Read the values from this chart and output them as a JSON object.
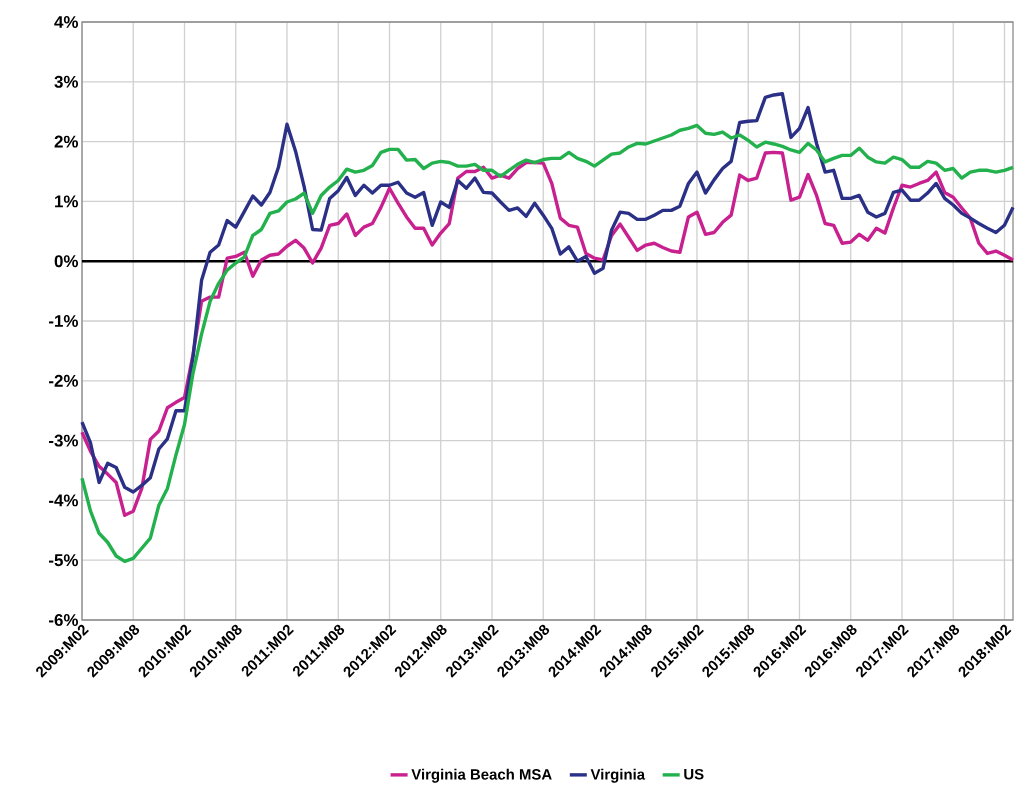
{
  "chart_data": {
    "type": "line",
    "categories": [
      "2009:M02",
      null,
      null,
      null,
      null,
      null,
      "2009:M08",
      null,
      null,
      null,
      null,
      null,
      "2010:M02",
      null,
      null,
      null,
      null,
      null,
      "2010:M08",
      null,
      null,
      null,
      null,
      null,
      "2011:M02",
      null,
      null,
      null,
      null,
      null,
      "2011:M08",
      null,
      null,
      null,
      null,
      null,
      "2012:M02",
      null,
      null,
      null,
      null,
      null,
      "2012:M08",
      null,
      null,
      null,
      null,
      null,
      "2013:M02",
      null,
      null,
      null,
      null,
      null,
      "2013:M08",
      null,
      null,
      null,
      null,
      null,
      "2014:M02",
      null,
      null,
      null,
      null,
      null,
      "2014:M08",
      null,
      null,
      null,
      null,
      null,
      "2015:M02",
      null,
      null,
      null,
      null,
      null,
      "2015:M08",
      null,
      null,
      null,
      null,
      null,
      "2016:M02",
      null,
      null,
      null,
      null,
      null,
      "2016:M08",
      null,
      null,
      null,
      null,
      null,
      "2017:M02",
      null,
      null,
      null,
      null,
      null,
      "2017:M08",
      null,
      null,
      null,
      null,
      null,
      "2018:M02",
      null
    ],
    "series": [
      {
        "name": "Virginia Beach MSA",
        "color": "#c8208f",
        "values": [
          -2.86,
          -3.18,
          -3.43,
          -3.56,
          -3.7,
          -4.25,
          -4.18,
          -3.8,
          -2.98,
          -2.84,
          -2.45,
          -2.36,
          -2.28,
          -1.56,
          -0.67,
          -0.6,
          -0.6,
          0.05,
          0.08,
          0.15,
          -0.25,
          0.02,
          0.1,
          0.12,
          0.25,
          0.35,
          0.22,
          -0.03,
          0.22,
          0.6,
          0.63,
          0.79,
          0.43,
          0.57,
          0.63,
          0.9,
          1.22,
          0.97,
          0.74,
          0.55,
          0.55,
          0.27,
          0.47,
          0.63,
          1.39,
          1.5,
          1.5,
          1.57,
          1.39,
          1.44,
          1.39,
          1.55,
          1.65,
          1.65,
          1.64,
          1.3,
          0.72,
          0.6,
          0.57,
          0.13,
          0.05,
          0.02,
          0.43,
          0.62,
          0.4,
          0.18,
          0.27,
          0.3,
          0.23,
          0.17,
          0.15,
          0.74,
          0.82,
          0.45,
          0.48,
          0.65,
          0.77,
          1.44,
          1.35,
          1.39,
          1.81,
          1.82,
          1.81,
          1.02,
          1.07,
          1.45,
          1.1,
          0.63,
          0.6,
          0.3,
          0.32,
          0.45,
          0.35,
          0.55,
          0.47,
          0.89,
          1.27,
          1.24,
          1.3,
          1.35,
          1.49,
          1.15,
          1.07,
          0.89,
          0.72,
          0.3,
          0.13,
          0.17,
          0.1,
          0.02
        ]
      },
      {
        "name": "Virginia",
        "color": "#2b3087",
        "values": [
          -2.69,
          -3.04,
          -3.7,
          -3.38,
          -3.45,
          -3.78,
          -3.86,
          -3.75,
          -3.62,
          -3.14,
          -2.97,
          -2.5,
          -2.5,
          -1.6,
          -0.32,
          0.15,
          0.27,
          0.68,
          0.57,
          0.83,
          1.09,
          0.94,
          1.15,
          1.57,
          2.29,
          1.84,
          1.25,
          0.53,
          0.52,
          1.05,
          1.18,
          1.4,
          1.1,
          1.27,
          1.14,
          1.27,
          1.27,
          1.32,
          1.14,
          1.07,
          1.15,
          0.6,
          0.99,
          0.9,
          1.35,
          1.22,
          1.39,
          1.15,
          1.14,
          0.99,
          0.85,
          0.89,
          0.75,
          0.97,
          0.77,
          0.55,
          0.12,
          0.24,
          0,
          0.08,
          -0.2,
          -0.12,
          0.52,
          0.82,
          0.8,
          0.7,
          0.7,
          0.77,
          0.85,
          0.85,
          0.92,
          1.3,
          1.49,
          1.14,
          1.36,
          1.55,
          1.67,
          2.32,
          2.34,
          2.35,
          2.74,
          2.78,
          2.8,
          2.07,
          2.22,
          2.57,
          1.97,
          1.49,
          1.52,
          1.05,
          1.05,
          1.1,
          0.82,
          0.74,
          0.8,
          1.15,
          1.19,
          1.02,
          1.02,
          1.14,
          1.3,
          1.05,
          0.94,
          0.8,
          0.72,
          0.63,
          0.55,
          0.48,
          0.6,
          0.9
        ]
      },
      {
        "name": "US",
        "color": "#22b14c",
        "values": [
          -3.63,
          -4.18,
          -4.55,
          -4.7,
          -4.93,
          -5.02,
          -4.97,
          -4.8,
          -4.63,
          -4.08,
          -3.8,
          -3.24,
          -2.73,
          -1.87,
          -1.22,
          -0.67,
          -0.37,
          -0.15,
          -0.03,
          0.07,
          0.43,
          0.53,
          0.8,
          0.84,
          0.99,
          1.04,
          1.14,
          0.8,
          1.1,
          1.24,
          1.35,
          1.54,
          1.49,
          1.52,
          1.6,
          1.82,
          1.87,
          1.87,
          1.69,
          1.7,
          1.55,
          1.64,
          1.67,
          1.65,
          1.59,
          1.59,
          1.62,
          1.52,
          1.52,
          1.42,
          1.52,
          1.62,
          1.69,
          1.65,
          1.7,
          1.72,
          1.72,
          1.82,
          1.72,
          1.67,
          1.59,
          1.69,
          1.79,
          1.81,
          1.91,
          1.97,
          1.96,
          2.01,
          2.06,
          2.11,
          2.19,
          2.22,
          2.27,
          2.14,
          2.12,
          2.16,
          2.06,
          2.11,
          2.02,
          1.91,
          1.99,
          1.96,
          1.92,
          1.86,
          1.82,
          1.97,
          1.86,
          1.66,
          1.72,
          1.77,
          1.77,
          1.89,
          1.74,
          1.66,
          1.64,
          1.74,
          1.7,
          1.57,
          1.57,
          1.67,
          1.64,
          1.52,
          1.55,
          1.39,
          1.49,
          1.52,
          1.52,
          1.49,
          1.52,
          1.57
        ]
      }
    ],
    "ylim": [
      -6,
      4
    ],
    "yticks": [
      {
        "value": -6,
        "label": "-6%"
      },
      {
        "value": -5,
        "label": "-5%"
      },
      {
        "value": -4,
        "label": "-4%"
      },
      {
        "value": -3,
        "label": "-3%"
      },
      {
        "value": -2,
        "label": "-2%"
      },
      {
        "value": -1,
        "label": "-1%"
      },
      {
        "value": 0,
        "label": "0%"
      },
      {
        "value": 1,
        "label": "1%"
      },
      {
        "value": 2,
        "label": "2%"
      },
      {
        "value": 3,
        "label": "3%"
      },
      {
        "value": 4,
        "label": "4%"
      }
    ],
    "ref_lines": [
      {
        "axis": "y",
        "value": 0,
        "color": "#000000"
      }
    ],
    "grid": true,
    "legend": "bottom",
    "marker": "none",
    "line_style": "solid"
  }
}
